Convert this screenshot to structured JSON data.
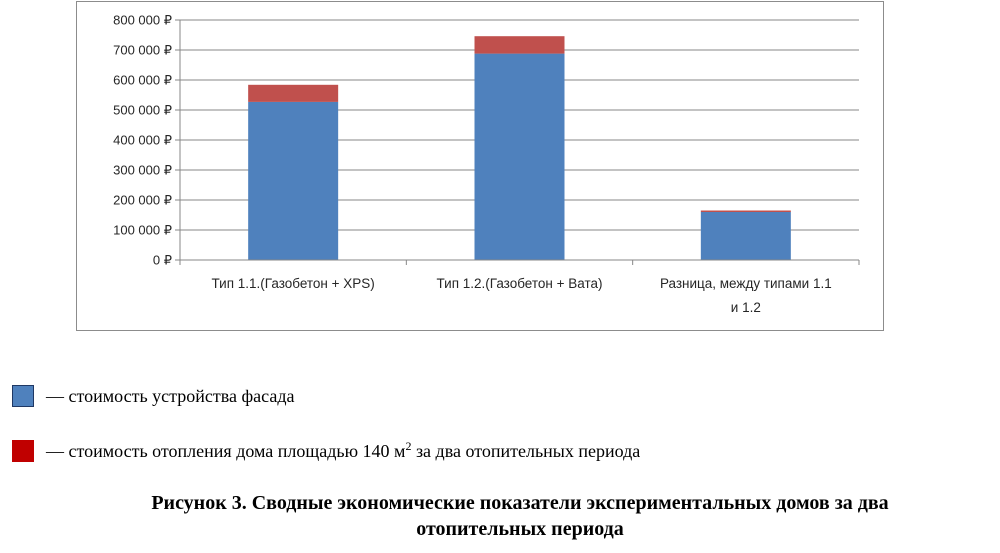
{
  "chart_data": {
    "type": "bar",
    "stacked": true,
    "categories": [
      [
        "Тип 1.1.(Газобетон  + XPS)"
      ],
      [
        "Тип 1.2.(Газобетон  + Вата)"
      ],
      [
        "Разница, между  типами 1.1",
        "и 1.2"
      ]
    ],
    "series": [
      {
        "color": "#4f81bd",
        "values": [
          527000,
          688000,
          160000
        ]
      },
      {
        "color": "#c0504d",
        "values": [
          57000,
          58000,
          5000
        ]
      }
    ],
    "ylim": [
      0,
      800000
    ],
    "yticks": [
      0,
      100000,
      200000,
      300000,
      400000,
      500000,
      600000,
      700000,
      800000
    ],
    "ytick_labels": [
      "0 ₽",
      "100 000 ₽",
      "200 000 ₽",
      "300 000 ₽",
      "400 000 ₽",
      "500 000 ₽",
      "600 000 ₽",
      "700 000 ₽",
      "800 000 ₽"
    ],
    "grid": true
  },
  "legend": {
    "items": [
      {
        "color": "#4f81bd",
        "text": "— стоимость устройства фасада",
        "sup": ""
      },
      {
        "color": "#c00000",
        "text": "— стоимость отопления дома площадью 140 м",
        "sup": "2",
        "after": " за два отопительных периода"
      }
    ]
  },
  "caption": {
    "line1": "Рисунок 3. Сводные экономические показатели экспериментальных домов за два",
    "line2": "отопительных периода"
  }
}
